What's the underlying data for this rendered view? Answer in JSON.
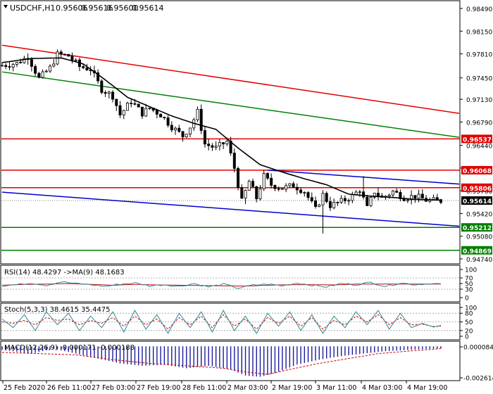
{
  "chart_data": {
    "type": "candlestick",
    "symbol": "USDCHF,H1",
    "header_values": [
      "0.95606",
      "0.95616",
      "0.95600",
      "0.95614"
    ],
    "colors": {
      "background": "#ffffff",
      "candle": "#000000",
      "ma_line": "#000000",
      "resistance": "#e00000",
      "support": "#008000",
      "channel": "#0000cc",
      "osc_main": "#2c8c9c",
      "osc_signal": "#cc0000",
      "macd_hist": "#1c1c9c",
      "current_price_box": "#000000"
    },
    "y_ticks": [
      "0.98490",
      "0.98150",
      "0.97810",
      "0.97450",
      "0.97130",
      "0.96790",
      "0.96440",
      "0.96100",
      "0.95760",
      "0.95420",
      "0.95080",
      "0.94740"
    ],
    "x_labels": [
      "25 Feb 2020",
      "26 Feb 11:00",
      "27 Feb 03:00",
      "27 Feb 19:00",
      "28 Feb 11:00",
      "2 Mar 03:00",
      "2 Mar 19:00",
      "3 Mar 11:00",
      "4 Mar 03:00",
      "4 Mar 19:00"
    ],
    "price_levels": [
      {
        "value": 0.96537,
        "label": "0.96537",
        "color": "#e00000"
      },
      {
        "value": 0.96068,
        "label": "0.96068",
        "color": "#e00000"
      },
      {
        "value": 0.95806,
        "label": "0.95806",
        "color": "#e00000"
      },
      {
        "value": 0.95212,
        "label": "0.95212",
        "color": "#008000"
      },
      {
        "value": 0.94869,
        "label": "0.94869",
        "color": "#008000"
      }
    ],
    "current_price": {
      "value": 0.95614,
      "label": "0.95614"
    },
    "trend_lines": [
      {
        "color": "#e00000",
        "from": [
          0,
          0.9794
        ],
        "to": [
          119,
          0.9696
        ]
      },
      {
        "color": "#008000",
        "from": [
          0,
          0.9754
        ],
        "to": [
          119,
          0.966
        ]
      },
      {
        "color": "#0000cc",
        "from": [
          0,
          0.9574
        ],
        "to": [
          119,
          0.9525
        ]
      },
      {
        "color": "#0000cc",
        "from": [
          72,
          0.9607
        ],
        "to": [
          119,
          0.9588
        ]
      }
    ],
    "ma_line": [
      [
        0,
        0.9768
      ],
      [
        8,
        0.9774
      ],
      [
        16,
        0.9775
      ],
      [
        22,
        0.9766
      ],
      [
        28,
        0.9742
      ],
      [
        34,
        0.9716
      ],
      [
        40,
        0.9702
      ],
      [
        46,
        0.9688
      ],
      [
        52,
        0.9677
      ],
      [
        58,
        0.9668
      ],
      [
        64,
        0.964
      ],
      [
        70,
        0.9615
      ],
      [
        76,
        0.9604
      ],
      [
        82,
        0.9594
      ],
      [
        88,
        0.9585
      ],
      [
        94,
        0.9571
      ],
      [
        100,
        0.9568
      ],
      [
        106,
        0.9566
      ],
      [
        112,
        0.9563
      ],
      [
        119,
        0.9562
      ]
    ],
    "price_path": [
      [
        0,
        0.9763
      ],
      [
        5,
        0.9767
      ],
      [
        8,
        0.9777
      ],
      [
        11,
        0.9744
      ],
      [
        14,
        0.976
      ],
      [
        16,
        0.978
      ],
      [
        19,
        0.9778
      ],
      [
        22,
        0.9762
      ],
      [
        25,
        0.9758
      ],
      [
        28,
        0.9728
      ],
      [
        31,
        0.9718
      ],
      [
        33,
        0.969
      ],
      [
        36,
        0.971
      ],
      [
        39,
        0.9692
      ],
      [
        41,
        0.97
      ],
      [
        44,
        0.969
      ],
      [
        47,
        0.9672
      ],
      [
        50,
        0.9658
      ],
      [
        52,
        0.9672
      ],
      [
        54,
        0.9694
      ],
      [
        56,
        0.9646
      ],
      [
        59,
        0.964
      ],
      [
        62,
        0.965
      ],
      [
        64,
        0.961
      ],
      [
        66,
        0.956
      ],
      [
        68,
        0.959
      ],
      [
        70,
        0.9565
      ],
      [
        72,
        0.9598
      ],
      [
        74,
        0.9585
      ],
      [
        77,
        0.958
      ],
      [
        80,
        0.9584
      ],
      [
        83,
        0.9575
      ],
      [
        86,
        0.9548
      ],
      [
        88,
        0.957
      ],
      [
        90,
        0.9554
      ],
      [
        93,
        0.956
      ],
      [
        96,
        0.9568
      ],
      [
        98,
        0.9578
      ],
      [
        100,
        0.955
      ],
      [
        102,
        0.9575
      ],
      [
        104,
        0.9565
      ],
      [
        107,
        0.9575
      ],
      [
        110,
        0.9566
      ],
      [
        113,
        0.9568
      ],
      [
        116,
        0.9562
      ],
      [
        119,
        0.9561
      ]
    ],
    "wick_spikes": [
      [
        87,
        0.9512
      ],
      [
        66,
        0.9556
      ],
      [
        79,
        0.9588
      ],
      [
        98,
        0.9598
      ],
      [
        108,
        0.9578
      ]
    ],
    "rsi": {
      "label": "RSI(14) 48.4297 ->MA(9) 48.1683",
      "ticks": [
        "100",
        "70",
        "50",
        "30",
        "0"
      ],
      "levels": [
        70,
        30
      ],
      "series": [
        [
          0,
          42
        ],
        [
          4,
          46
        ],
        [
          8,
          52
        ],
        [
          12,
          44
        ],
        [
          16,
          56
        ],
        [
          20,
          50
        ],
        [
          24,
          46
        ],
        [
          28,
          40
        ],
        [
          32,
          48
        ],
        [
          36,
          52
        ],
        [
          40,
          42
        ],
        [
          44,
          46
        ],
        [
          48,
          40
        ],
        [
          52,
          50
        ],
        [
          56,
          38
        ],
        [
          60,
          48
        ],
        [
          64,
          34
        ],
        [
          68,
          44
        ],
        [
          72,
          48
        ],
        [
          76,
          42
        ],
        [
          80,
          52
        ],
        [
          84,
          44
        ],
        [
          88,
          38
        ],
        [
          92,
          50
        ],
        [
          96,
          46
        ],
        [
          100,
          54
        ],
        [
          104,
          40
        ],
        [
          108,
          52
        ],
        [
          112,
          46
        ],
        [
          116,
          50
        ],
        [
          119,
          48
        ]
      ],
      "signal": [
        [
          0,
          44
        ],
        [
          6,
          47
        ],
        [
          12,
          48
        ],
        [
          18,
          50
        ],
        [
          24,
          47
        ],
        [
          30,
          44
        ],
        [
          36,
          47
        ],
        [
          42,
          45
        ],
        [
          48,
          44
        ],
        [
          54,
          43
        ],
        [
          60,
          42
        ],
        [
          66,
          41
        ],
        [
          72,
          44
        ],
        [
          78,
          46
        ],
        [
          84,
          46
        ],
        [
          90,
          45
        ],
        [
          96,
          48
        ],
        [
          102,
          48
        ],
        [
          108,
          48
        ],
        [
          114,
          48
        ],
        [
          119,
          48
        ]
      ]
    },
    "stoch": {
      "label": "Stoch(5,3,3) 38.4615 35.4475",
      "ticks": [
        "100",
        "80",
        "50",
        "20",
        "0"
      ],
      "levels": [
        80,
        50,
        20
      ],
      "main": [
        [
          0,
          60
        ],
        [
          3,
          30
        ],
        [
          6,
          75
        ],
        [
          9,
          20
        ],
        [
          12,
          85
        ],
        [
          15,
          40
        ],
        [
          18,
          80
        ],
        [
          21,
          20
        ],
        [
          24,
          70
        ],
        [
          27,
          30
        ],
        [
          30,
          85
        ],
        [
          33,
          15
        ],
        [
          36,
          90
        ],
        [
          39,
          25
        ],
        [
          42,
          75
        ],
        [
          45,
          10
        ],
        [
          48,
          80
        ],
        [
          51,
          30
        ],
        [
          54,
          85
        ],
        [
          57,
          15
        ],
        [
          60,
          90
        ],
        [
          63,
          20
        ],
        [
          66,
          70
        ],
        [
          69,
          10
        ],
        [
          72,
          80
        ],
        [
          75,
          35
        ],
        [
          78,
          85
        ],
        [
          81,
          20
        ],
        [
          84,
          75
        ],
        [
          87,
          10
        ],
        [
          90,
          70
        ],
        [
          93,
          30
        ],
        [
          96,
          85
        ],
        [
          99,
          40
        ],
        [
          102,
          90
        ],
        [
          105,
          25
        ],
        [
          108,
          80
        ],
        [
          111,
          30
        ],
        [
          114,
          45
        ],
        [
          117,
          32
        ],
        [
          119,
          38
        ]
      ],
      "signal": [
        [
          0,
          50
        ],
        [
          3,
          45
        ],
        [
          6,
          55
        ],
        [
          9,
          40
        ],
        [
          12,
          65
        ],
        [
          15,
          55
        ],
        [
          18,
          60
        ],
        [
          21,
          40
        ],
        [
          24,
          55
        ],
        [
          27,
          45
        ],
        [
          30,
          65
        ],
        [
          33,
          35
        ],
        [
          36,
          70
        ],
        [
          39,
          40
        ],
        [
          42,
          60
        ],
        [
          45,
          25
        ],
        [
          48,
          65
        ],
        [
          51,
          40
        ],
        [
          54,
          70
        ],
        [
          57,
          30
        ],
        [
          60,
          75
        ],
        [
          63,
          35
        ],
        [
          66,
          60
        ],
        [
          69,
          25
        ],
        [
          72,
          65
        ],
        [
          75,
          45
        ],
        [
          78,
          70
        ],
        [
          81,
          35
        ],
        [
          84,
          65
        ],
        [
          87,
          25
        ],
        [
          90,
          55
        ],
        [
          93,
          40
        ],
        [
          96,
          70
        ],
        [
          99,
          50
        ],
        [
          102,
          75
        ],
        [
          105,
          40
        ],
        [
          108,
          65
        ],
        [
          111,
          40
        ],
        [
          114,
          42
        ],
        [
          117,
          34
        ],
        [
          119,
          35
        ]
      ]
    },
    "macd": {
      "label": "MACD(12,26,9) -0.000171 -0.000188",
      "ticks": [
        "0.000084",
        "-0.002614"
      ],
      "range": [
        -0.0027,
        0.0003
      ],
      "hist": [
        [
          0,
          -0.0003
        ],
        [
          8,
          -0.0006
        ],
        [
          14,
          -0.0002
        ],
        [
          20,
          -0.0006
        ],
        [
          26,
          -0.001
        ],
        [
          32,
          -0.0014
        ],
        [
          38,
          -0.0016
        ],
        [
          44,
          -0.0015
        ],
        [
          50,
          -0.0018
        ],
        [
          56,
          -0.0016
        ],
        [
          62,
          -0.0019
        ],
        [
          66,
          -0.0024
        ],
        [
          70,
          -0.0025
        ],
        [
          74,
          -0.0022
        ],
        [
          80,
          -0.0015
        ],
        [
          86,
          -0.0011
        ],
        [
          92,
          -0.0008
        ],
        [
          98,
          -0.0006
        ],
        [
          104,
          -0.0004
        ],
        [
          110,
          -0.0003
        ],
        [
          116,
          -0.0002
        ],
        [
          119,
          -0.00017
        ]
      ],
      "signal": [
        [
          0,
          -0.0005
        ],
        [
          10,
          -0.0006
        ],
        [
          20,
          -0.0007
        ],
        [
          30,
          -0.0011
        ],
        [
          40,
          -0.0014
        ],
        [
          50,
          -0.0016
        ],
        [
          60,
          -0.0018
        ],
        [
          66,
          -0.0021
        ],
        [
          72,
          -0.0023
        ],
        [
          78,
          -0.0019
        ],
        [
          86,
          -0.0014
        ],
        [
          94,
          -0.001
        ],
        [
          102,
          -0.0006
        ],
        [
          110,
          -0.0004
        ],
        [
          119,
          -0.00019
        ]
      ]
    }
  }
}
